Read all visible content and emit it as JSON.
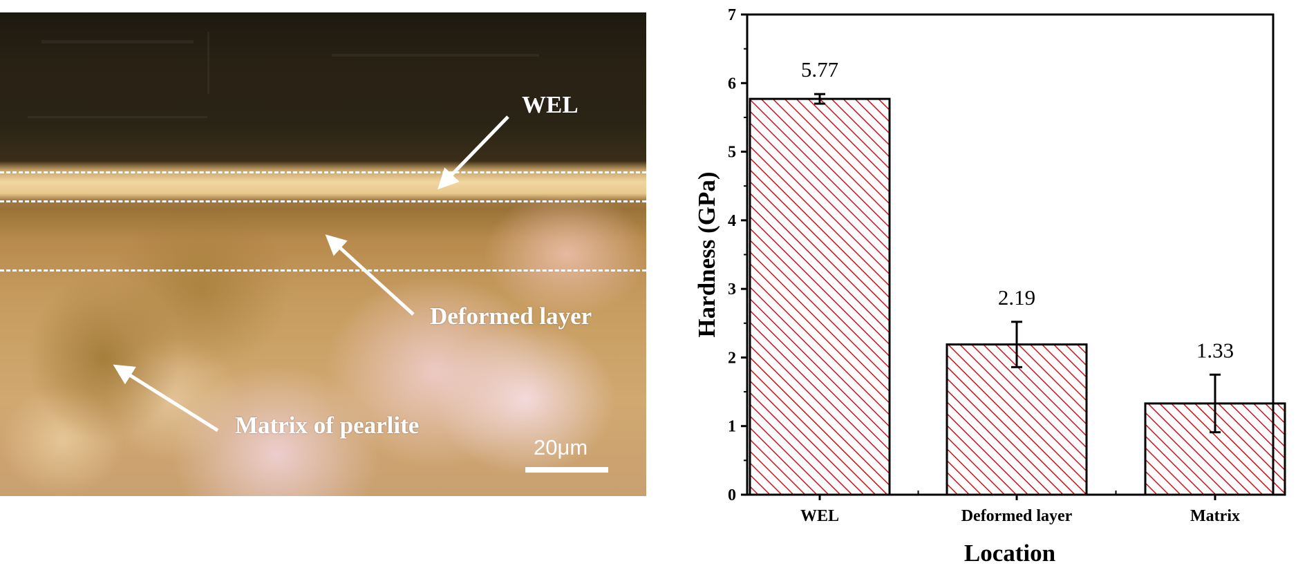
{
  "micrograph": {
    "labels": {
      "wel": "WEL",
      "deformed": "Deformed layer",
      "matrix": "Matrix of pearlite"
    },
    "scale_bar_text": "20μm"
  },
  "chart_data": {
    "type": "bar",
    "categories": [
      "WEL",
      "Deformed layer",
      "Matrix"
    ],
    "values": [
      5.77,
      2.19,
      1.33
    ],
    "errors": [
      0.07,
      0.33,
      0.42
    ],
    "value_labels": [
      "5.77",
      "2.19",
      "1.33"
    ],
    "xlabel": "Location",
    "ylabel": "Hardness (GPa)",
    "ylim": [
      0,
      7
    ],
    "yticks": [
      0,
      1,
      2,
      3,
      4,
      5,
      6,
      7
    ],
    "bar_fill": "hatched",
    "colors": {
      "bar_stroke": "#000000",
      "hatch": "#d0101a",
      "bar_bg": "#ffffff"
    },
    "grid": false
  }
}
